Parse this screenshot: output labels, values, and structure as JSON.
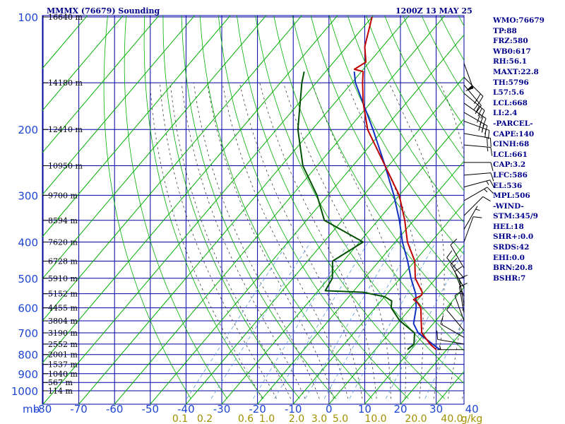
{
  "header": {
    "title": "MMMX (76679) Sounding",
    "datetime": "1200Z 13 MAY 25"
  },
  "side_panel": [
    "WMO:76679",
    "TP:88",
    "FRZ:580",
    "WB0:617",
    "RH:56.1",
    "MAXT:22.8",
    "TH:5796",
    "L57:5.6",
    "LCL:668",
    "LI:2.4",
    "-PARCEL-",
    "CAPE:140",
    "CINH:68",
    "LCL:661",
    "CAP:3.2",
    "LFC:586",
    "EL:536",
    "MPL:506",
    "-WIND-",
    "STM:345/9",
    "HEL:18",
    "SHR+:0.0",
    "SRDS:42",
    "EHI:0.0",
    "BRN:20.8",
    "BSHR:7"
  ],
  "colors": {
    "text": "#00008b",
    "grid": "#0000a0",
    "dry_adiabat": "#00b000",
    "moist_adiabat": "#404040",
    "mixing_ratio": "#5a9ad8",
    "temperature": "#c00000",
    "dewpoint": "#005000",
    "parcel": "#1030c0",
    "pressure_label": "#1e46d2",
    "mixing_label": "#a09000",
    "wind_barb": "#000000"
  },
  "chart_data": {
    "type": "line",
    "subtype": "skew-t log-p sounding",
    "xlabel_unit": "mb",
    "mixing_ratio_unit": "g/kg",
    "pressure_levels": [
      100,
      200,
      300,
      400,
      500,
      600,
      700,
      800,
      900,
      1000
    ],
    "pressure_labels": [
      "100",
      "200",
      "300",
      "400",
      "500",
      "600",
      "700",
      "800",
      "900",
      "1000"
    ],
    "temperature_ticks": [
      -80,
      -70,
      -60,
      -50,
      -40,
      -30,
      -20,
      -10,
      0,
      10,
      20,
      30,
      40
    ],
    "temperature_tick_labels": [
      "-80",
      "-70",
      "-60",
      "-50",
      "-40",
      "-30",
      "-20",
      "-10",
      "0",
      "10",
      "20",
      "30",
      "40"
    ],
    "mixing_ratio_ticks": [
      0.1,
      0.2,
      0.6,
      1.0,
      2.0,
      3.0,
      5.0,
      10.0,
      20.0,
      40.0
    ],
    "mixing_ratio_labels": [
      "0.1",
      "0.2",
      "0.6",
      "1.0",
      "2.0",
      "3.0",
      "5.0",
      "10.0",
      "20.0",
      "40.0"
    ],
    "mixing_ratio_unit_label": "g/kg",
    "height_labels": [
      {
        "p": 100,
        "label": "16640 m"
      },
      {
        "p": 150,
        "label": "14180 m"
      },
      {
        "p": 200,
        "label": "12410 m"
      },
      {
        "p": 250,
        "label": "10950 m"
      },
      {
        "p": 300,
        "label": "9700 m"
      },
      {
        "p": 350,
        "label": "8594 m"
      },
      {
        "p": 400,
        "label": "7620 m"
      },
      {
        "p": 450,
        "label": "6728 m"
      },
      {
        "p": 500,
        "label": "5910 m"
      },
      {
        "p": 550,
        "label": "5152 m"
      },
      {
        "p": 600,
        "label": "4455 m"
      },
      {
        "p": 650,
        "label": "3804 m"
      },
      {
        "p": 700,
        "label": "3190 m"
      },
      {
        "p": 750,
        "label": "2552 m"
      },
      {
        "p": 800,
        "label": "2001 m"
      },
      {
        "p": 850,
        "label": "1537 m"
      },
      {
        "p": 900,
        "label": "1040 m"
      },
      {
        "p": 950,
        "label": "567 m"
      },
      {
        "p": 1000,
        "label": "114 m"
      }
    ],
    "temperature_profile": [
      {
        "p": 776,
        "t": 17.0
      },
      {
        "p": 750,
        "t": 14.0
      },
      {
        "p": 700,
        "t": 9.0
      },
      {
        "p": 650,
        "t": 6.0
      },
      {
        "p": 600,
        "t": 2.8
      },
      {
        "p": 580,
        "t": 0.5
      },
      {
        "p": 570,
        "t": -1.2
      },
      {
        "p": 555,
        "t": 0.0
      },
      {
        "p": 545,
        "t": -0.5
      },
      {
        "p": 500,
        "t": -5.8
      },
      {
        "p": 450,
        "t": -10.0
      },
      {
        "p": 400,
        "t": -16.6
      },
      {
        "p": 350,
        "t": -22.5
      },
      {
        "p": 300,
        "t": -30.0
      },
      {
        "p": 250,
        "t": -41.0
      },
      {
        "p": 200,
        "t": -54.5
      },
      {
        "p": 170,
        "t": -62.0
      },
      {
        "p": 150,
        "t": -67.0
      },
      {
        "p": 140,
        "t": -69.5
      },
      {
        "p": 138,
        "t": -72.5
      },
      {
        "p": 132,
        "t": -71.0
      },
      {
        "p": 120,
        "t": -75.0
      },
      {
        "p": 100,
        "t": -80.0
      }
    ],
    "dewpoint_profile": [
      {
        "p": 776,
        "t": 9.0
      },
      {
        "p": 750,
        "t": 9.5
      },
      {
        "p": 700,
        "t": 7.0
      },
      {
        "p": 650,
        "t": 0.0
      },
      {
        "p": 600,
        "t": -5.5
      },
      {
        "p": 575,
        "t": -7.0
      },
      {
        "p": 560,
        "t": -10.0
      },
      {
        "p": 545,
        "t": -17.0
      },
      {
        "p": 540,
        "t": -28.0
      },
      {
        "p": 500,
        "t": -29.0
      },
      {
        "p": 450,
        "t": -33.0
      },
      {
        "p": 400,
        "t": -29.0
      },
      {
        "p": 350,
        "t": -45.0
      },
      {
        "p": 300,
        "t": -53.0
      },
      {
        "p": 250,
        "t": -64.0
      },
      {
        "p": 200,
        "t": -74.0
      },
      {
        "p": 150,
        "t": -84.0
      },
      {
        "p": 140,
        "t": -86.0
      }
    ],
    "parcel_profile": [
      {
        "p": 776,
        "t": 18.0
      },
      {
        "p": 700,
        "t": 8.0
      },
      {
        "p": 661,
        "t": 4.5
      },
      {
        "p": 600,
        "t": 1.5
      },
      {
        "p": 550,
        "t": -2.0
      },
      {
        "p": 500,
        "t": -7.0
      },
      {
        "p": 450,
        "t": -12.0
      },
      {
        "p": 400,
        "t": -18.0
      },
      {
        "p": 350,
        "t": -24.0
      },
      {
        "p": 300,
        "t": -31.5
      },
      {
        "p": 250,
        "t": -41.0
      },
      {
        "p": 200,
        "t": -53.0
      },
      {
        "p": 150,
        "t": -69.0
      },
      {
        "p": 140,
        "t": -72.0
      }
    ],
    "wind_barbs": [
      {
        "p": 133,
        "dir": 160,
        "spd": 50
      },
      {
        "p": 145,
        "dir": 135,
        "spd": 20
      },
      {
        "p": 152,
        "dir": 140,
        "spd": 25
      },
      {
        "p": 160,
        "dir": 130,
        "spd": 30
      },
      {
        "p": 170,
        "dir": 125,
        "spd": 30
      },
      {
        "p": 180,
        "dir": 120,
        "spd": 30
      },
      {
        "p": 190,
        "dir": 110,
        "spd": 25
      },
      {
        "p": 205,
        "dir": 100,
        "spd": 20
      },
      {
        "p": 220,
        "dir": 95,
        "spd": 15
      },
      {
        "p": 245,
        "dir": 90,
        "spd": 10
      },
      {
        "p": 265,
        "dir": 85,
        "spd": 10
      },
      {
        "p": 285,
        "dir": 75,
        "spd": 15
      },
      {
        "p": 310,
        "dir": 60,
        "spd": 15
      },
      {
        "p": 340,
        "dir": 45,
        "spd": 10
      },
      {
        "p": 370,
        "dir": 30,
        "spd": 5
      },
      {
        "p": 400,
        "dir": 20,
        "spd": 10
      },
      {
        "p": 470,
        "dir": 330,
        "spd": 10
      },
      {
        "p": 500,
        "dir": 320,
        "spd": 10
      },
      {
        "p": 530,
        "dir": 330,
        "spd": 15
      },
      {
        "p": 560,
        "dir": 340,
        "spd": 10
      },
      {
        "p": 590,
        "dir": 350,
        "spd": 10
      },
      {
        "p": 620,
        "dir": 350,
        "spd": 10
      },
      {
        "p": 650,
        "dir": 340,
        "spd": 10
      },
      {
        "p": 690,
        "dir": 320,
        "spd": 10
      },
      {
        "p": 720,
        "dir": 300,
        "spd": 10
      },
      {
        "p": 750,
        "dir": 280,
        "spd": 10
      },
      {
        "p": 776,
        "dir": 270,
        "spd": 5
      }
    ]
  }
}
